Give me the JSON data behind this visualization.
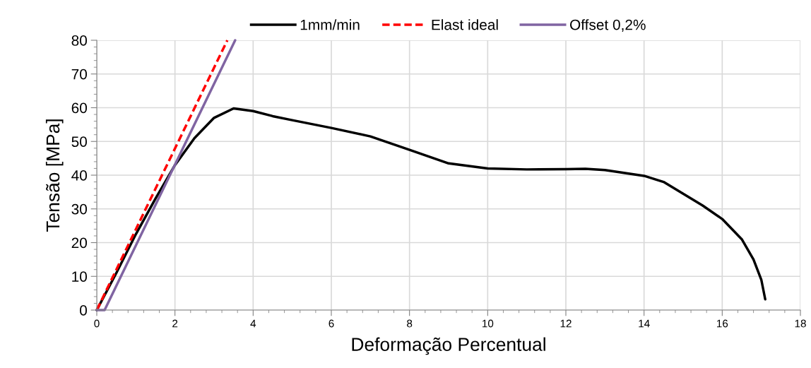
{
  "chart_data": {
    "type": "line",
    "xlabel": "Deformação Percentual",
    "ylabel": "Tensão [MPa]",
    "xlim": [
      0,
      18
    ],
    "xticks": [
      0,
      2,
      4,
      6,
      8,
      10,
      12,
      14,
      16,
      18
    ],
    "ylim": [
      0,
      80
    ],
    "yticks": [
      0,
      10,
      20,
      30,
      40,
      50,
      60,
      70,
      80
    ],
    "grid": true,
    "legend": "top",
    "marker": "none",
    "series": [
      {
        "name": "1mm/min",
        "color": "#000000",
        "line_style": "solid",
        "x": [
          0,
          0.5,
          1,
          1.5,
          2,
          2.5,
          3,
          3.5,
          4,
          4.5,
          5,
          6,
          7,
          8,
          9,
          10,
          11,
          12,
          12.5,
          13,
          14,
          14.5,
          15,
          15.5,
          16,
          16.5,
          16.8,
          17,
          17.1
        ],
        "values": [
          0,
          11,
          22.5,
          33,
          43,
          51,
          57,
          59.8,
          59,
          57.5,
          56.3,
          54,
          51.5,
          47.5,
          43.5,
          42,
          41.7,
          41.8,
          41.9,
          41.5,
          39.8,
          38,
          34.5,
          31,
          27,
          21,
          15,
          9,
          3.2
        ]
      },
      {
        "name": "Elast ideal",
        "color": "#ff0000",
        "line_style": "dashed",
        "x": [
          0,
          3.34
        ],
        "values": [
          0,
          80
        ]
      },
      {
        "name": "Offset 0,2%",
        "color": "#8064a2",
        "line_style": "solid",
        "x": [
          0,
          0.2,
          3.54
        ],
        "values": [
          0,
          0,
          80
        ]
      }
    ]
  }
}
